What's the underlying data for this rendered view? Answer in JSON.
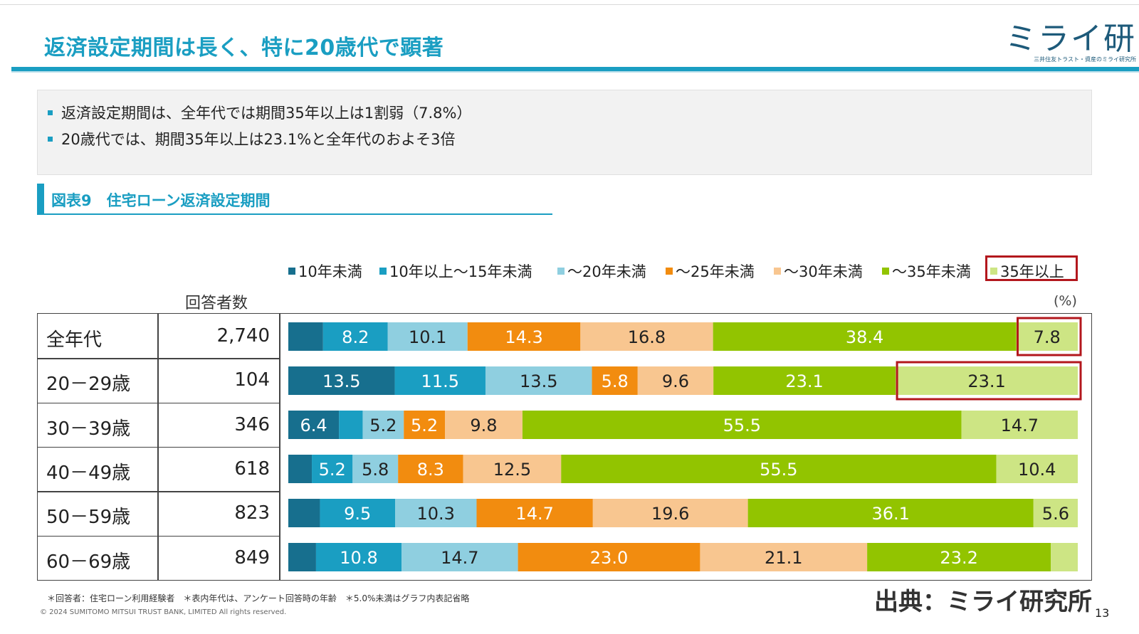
{
  "header": {
    "title": "返済設定期間は長く、特に20歳代で顕著",
    "logo_text": "ミライ研",
    "logo_subtext": "三井住友トラスト・資産のミライ研究所"
  },
  "summary": {
    "bullets": [
      "返済設定期間は、全年代では期間35年以上は1割弱（7.8%）",
      "20歳代では、期間35年以上は23.1%と全年代のおよそ3倍"
    ]
  },
  "figure": {
    "title": "図表9　住宅ローン返済設定期間",
    "respondents_header": "回答者数",
    "unit": "(%)"
  },
  "chart_data": {
    "type": "bar",
    "orientation": "horizontal",
    "stacked": true,
    "percent": true,
    "categories": [
      "全年代",
      "20－29歳",
      "30－39歳",
      "40－49歳",
      "50－59歳",
      "60－69歳"
    ],
    "respondents": [
      "2,740",
      "104",
      "346",
      "618",
      "823",
      "849"
    ],
    "series": [
      {
        "name": "10年未満",
        "color": "#176f8e",
        "values": [
          4.4,
          13.5,
          6.4,
          3.0,
          4.0,
          3.5
        ]
      },
      {
        "name": "10年以上～15年未満",
        "color": "#1a9ec2",
        "values": [
          8.2,
          11.5,
          3.0,
          5.2,
          9.5,
          10.8
        ]
      },
      {
        "name": "～20年未満",
        "color": "#8fcfe0",
        "values": [
          10.1,
          13.5,
          5.2,
          5.8,
          10.3,
          14.7
        ]
      },
      {
        "name": "～25年未満",
        "color": "#f28c0f",
        "values": [
          14.3,
          5.8,
          5.2,
          8.3,
          14.7,
          23.0
        ]
      },
      {
        "name": "～30年未満",
        "color": "#f8c690",
        "values": [
          16.8,
          9.6,
          9.8,
          12.5,
          19.6,
          21.1
        ]
      },
      {
        "name": "～35年未満",
        "color": "#92c400",
        "values": [
          38.4,
          23.1,
          55.5,
          55.5,
          36.1,
          23.2
        ]
      },
      {
        "name": "35年以上",
        "color": "#cde584",
        "values": [
          7.8,
          23.1,
          14.7,
          10.4,
          5.6,
          3.4
        ]
      }
    ],
    "shown_labels": [
      [
        "",
        "8.2",
        "10.1",
        "14.3",
        "16.8",
        "38.4",
        "7.8"
      ],
      [
        "13.5",
        "11.5",
        "13.5",
        "5.8",
        "9.6",
        "23.1",
        "23.1"
      ],
      [
        "6.4",
        "",
        "5.2",
        "5.2",
        "9.8",
        "55.5",
        "14.7"
      ],
      [
        "",
        "5.2",
        "5.8",
        "8.3",
        "12.5",
        "55.5",
        "10.4"
      ],
      [
        "",
        "9.5",
        "10.3",
        "14.7",
        "19.6",
        "36.1",
        "5.6"
      ],
      [
        "",
        "10.8",
        "14.7",
        "23.0",
        "21.1",
        "23.2",
        ""
      ]
    ],
    "highlighted": [
      [
        0,
        6
      ],
      [
        1,
        6
      ]
    ],
    "highlight_color": "#b3171d",
    "xlim": [
      0,
      100
    ]
  },
  "footer": {
    "footnote": "＊回答者：住宅ローン利用経験者　＊表内年代は、アンケート回答時の年齢　＊5.0%未満はグラフ内表記省略",
    "copyright": "© 2024 SUMITOMO MITSUI TRUST BANK, LIMITED All rights reserved.",
    "source": "出典：ミライ研究所",
    "page_number": "13"
  }
}
